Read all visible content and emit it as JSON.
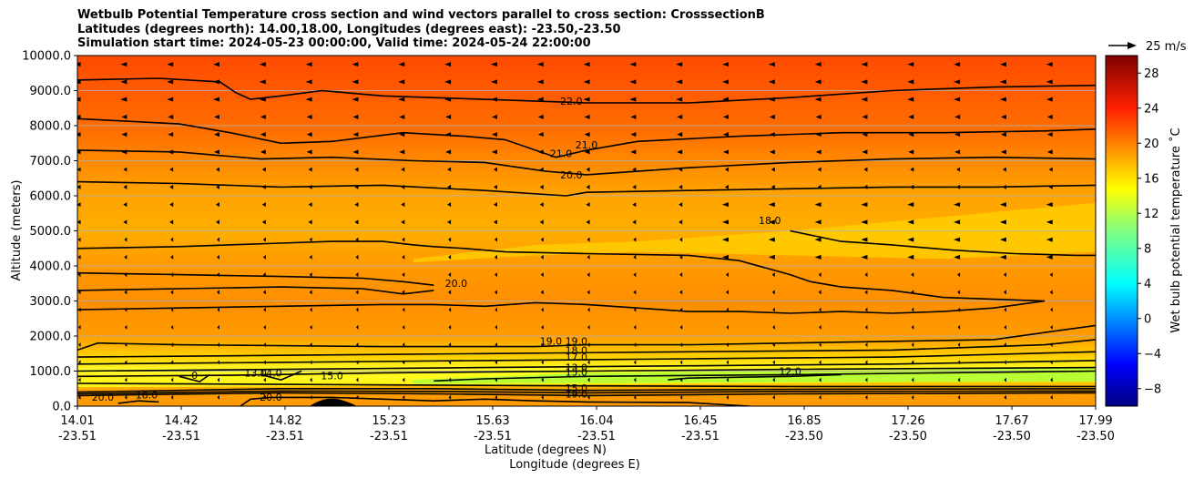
{
  "chart_data": {
    "type": "contour",
    "title_lines": [
      "Wetbulb Potential Temperature cross section and wind vectors parallel to cross section: CrosssectionB",
      "Latitudes (degrees north): 14.00,18.00, Longitudes (degrees east): -23.50,-23.50",
      "Simulation start time: 2024-05-23 00:00:00, Valid time: 2024-05-24 22:00:00"
    ],
    "ylabel": "Altitude (meters)",
    "xlabel_lat": "Latitude (degrees N)",
    "xlabel_lon": "Longitude (degrees E)",
    "ylim": [
      0,
      10000
    ],
    "y_ticks": [
      0,
      1000,
      2000,
      3000,
      4000,
      5000,
      6000,
      7000,
      8000,
      9000,
      10000
    ],
    "y_tick_labels": [
      "0.0",
      "1000.0",
      "2000.0",
      "3000.0",
      "4000.0",
      "5000.0",
      "6000.0",
      "7000.0",
      "8000.0",
      "9000.0",
      "10000.0"
    ],
    "x_ticks": [
      {
        "lat": "14.01",
        "lon": "-23.51"
      },
      {
        "lat": "14.42",
        "lon": "-23.51"
      },
      {
        "lat": "14.82",
        "lon": "-23.51"
      },
      {
        "lat": "15.23",
        "lon": "-23.51"
      },
      {
        "lat": "15.63",
        "lon": "-23.51"
      },
      {
        "lat": "16.04",
        "lon": "-23.51"
      },
      {
        "lat": "16.45",
        "lon": "-23.51"
      },
      {
        "lat": "16.85",
        "lon": "-23.50"
      },
      {
        "lat": "17.26",
        "lon": "-23.50"
      },
      {
        "lat": "17.67",
        "lon": "-23.50"
      },
      {
        "lat": "17.99",
        "lon": "-23.50"
      }
    ],
    "colorbar": {
      "label": "Wet bulb potential temperature $^\\circ$C",
      "label_text": "Wet bulb potential temperature ˚C",
      "range": [
        -10,
        30
      ],
      "ticks": [
        -8,
        -4,
        0,
        4,
        8,
        12,
        16,
        20,
        24,
        28
      ],
      "tick_labels": [
        "−8",
        "−4",
        "0",
        "4",
        "8",
        "12",
        "16",
        "20",
        "24",
        "28"
      ]
    },
    "quiver_key": {
      "label": "25 m/s",
      "value": 25
    },
    "contour_labels": [
      {
        "text": "22.0",
        "x_frac": 0.485,
        "alt": 8600
      },
      {
        "text": "21.0",
        "x_frac": 0.475,
        "alt": 7100
      },
      {
        "text": "21.0",
        "x_frac": 0.5,
        "alt": 7350
      },
      {
        "text": "20.0",
        "x_frac": 0.485,
        "alt": 6500
      },
      {
        "text": "18.0",
        "x_frac": 0.68,
        "alt": 5200
      },
      {
        "text": "20.0",
        "x_frac": 0.372,
        "alt": 3400
      },
      {
        "text": "19.0",
        "x_frac": 0.465,
        "alt": 1750
      },
      {
        "text": "19.0",
        "x_frac": 0.49,
        "alt": 1750
      },
      {
        "text": "18.0",
        "x_frac": 0.49,
        "alt": 1500
      },
      {
        "text": "17.0",
        "x_frac": 0.49,
        "alt": 1300
      },
      {
        "text": "13.0",
        "x_frac": 0.49,
        "alt": 1000
      },
      {
        "text": "15.0",
        "x_frac": 0.49,
        "alt": 870
      },
      {
        "text": "15.0",
        "x_frac": 0.25,
        "alt": 760
      },
      {
        "text": "12.0",
        "x_frac": 0.7,
        "alt": 900
      },
      {
        "text": "15.0",
        "x_frac": 0.49,
        "alt": 420
      },
      {
        "text": "19.0",
        "x_frac": 0.49,
        "alt": 250
      },
      {
        "text": "20.0",
        "x_frac": 0.025,
        "alt": 150
      },
      {
        "text": "18.0",
        "x_frac": 0.068,
        "alt": 220
      },
      {
        "text": "20.0",
        "x_frac": 0.19,
        "alt": 150
      },
      {
        "text": "13.0",
        "x_frac": 0.175,
        "alt": 850
      },
      {
        "text": "14.0",
        "x_frac": 0.19,
        "alt": 850
      },
      {
        "text": "0",
        "x_frac": 0.115,
        "alt": 780
      }
    ]
  },
  "colors": {
    "top": "#ff4e00",
    "upper": "#ff7400",
    "mid": "#ff9600",
    "lower": "#ffac00",
    "low": "#ffd000",
    "band_yellow": "#ffff20",
    "band_green": "#a8ff3a"
  }
}
